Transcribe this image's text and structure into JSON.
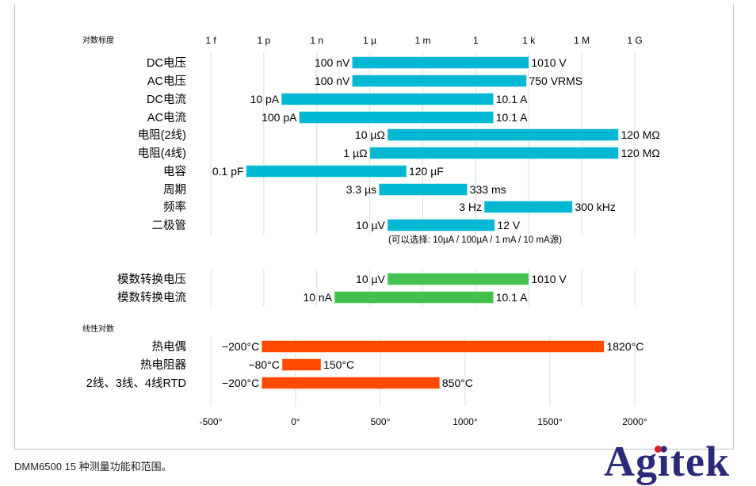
{
  "chart_data": [
    {
      "type": "bar",
      "orientation": "horizontal",
      "scale": "log",
      "scale_label": "对数标度",
      "ticks": [
        {
          "value": 1e-15,
          "label": "1 f"
        },
        {
          "value": 1e-12,
          "label": "1 p"
        },
        {
          "value": 1e-09,
          "label": "1 n"
        },
        {
          "value": 1e-06,
          "label": "1 µ"
        },
        {
          "value": 0.001,
          "label": "1 m"
        },
        {
          "value": 1,
          "label": "1"
        },
        {
          "value": 1000.0,
          "label": "1 k"
        },
        {
          "value": 1000000.0,
          "label": "1 M"
        },
        {
          "value": 1000000000.0,
          "label": "1 G"
        }
      ],
      "xlim": [
        1e-15,
        1000000000.0
      ],
      "grid": true,
      "note": "(可以选择: 10µA / 100µA / 1 mA / 10 mA源)",
      "series": [
        {
          "color": "#00b8d4",
          "rows": [
            {
              "category": "DC电压",
              "min": 1e-07,
              "max": 1010,
              "min_label": "100 nV",
              "max_label": "1010 V"
            },
            {
              "category": "AC电压",
              "min": 1e-07,
              "max": 750,
              "min_label": "100 nV",
              "max_label": "750 VRMS"
            },
            {
              "category": "DC电流",
              "min": 1e-11,
              "max": 10.1,
              "min_label": "10 pA",
              "max_label": "10.1 A"
            },
            {
              "category": "AC电流",
              "min": 1e-10,
              "max": 10.1,
              "min_label": "100 pA",
              "max_label": "10.1 A"
            },
            {
              "category": "电阻(2线)",
              "min": 1e-05,
              "max": 120000000.0,
              "min_label": "10 µΩ",
              "max_label": "120 MΩ"
            },
            {
              "category": "电阻(4线)",
              "min": 1e-06,
              "max": 120000000.0,
              "min_label": "1 µΩ",
              "max_label": "120 MΩ"
            },
            {
              "category": "电容",
              "min": 1e-13,
              "max": 0.00012,
              "min_label": "0.1 pF",
              "max_label": "120 µF"
            },
            {
              "category": "周期",
              "min": 3.3e-06,
              "max": 0.333,
              "min_label": "3.3 µs",
              "max_label": "333 ms"
            },
            {
              "category": "频率",
              "min": 3,
              "max": 300000.0,
              "min_label": "3 Hz",
              "max_label": "300 kHz"
            },
            {
              "category": "二极管",
              "min": 1e-05,
              "max": 12,
              "min_label": "10 µV",
              "max_label": "12 V"
            }
          ]
        },
        {
          "color": "#44c04c",
          "rows": [
            {
              "category": "模数转换电压",
              "min": 1e-05,
              "max": 1010,
              "min_label": "10 µV",
              "max_label": "1010 V"
            },
            {
              "category": "模数转换电流",
              "min": 1e-08,
              "max": 10.1,
              "min_label": "10 nA",
              "max_label": "10.1 A"
            }
          ]
        }
      ]
    },
    {
      "type": "bar",
      "orientation": "horizontal",
      "scale": "linear",
      "scale_label": "线性对数",
      "ticks": [
        {
          "value": -500,
          "label": "-500°"
        },
        {
          "value": 0,
          "label": "0°"
        },
        {
          "value": 500,
          "label": "500°"
        },
        {
          "value": 1000,
          "label": "1000°"
        },
        {
          "value": 1500,
          "label": "1500°"
        },
        {
          "value": 2000,
          "label": "2000°"
        }
      ],
      "xlim": [
        -500,
        2000
      ],
      "grid": true,
      "series": [
        {
          "color": "#ff4a00",
          "rows": [
            {
              "category": "热电偶",
              "min": -200,
              "max": 1820,
              "min_label": "−200°C",
              "max_label": "1820°C"
            },
            {
              "category": "热电阻器",
              "min": -80,
              "max": 150,
              "min_label": "−80°C",
              "max_label": "150°C"
            },
            {
              "category": "2线、3线、4线RTD",
              "min": -200,
              "max": 850,
              "min_label": "−200°C",
              "max_label": "850°C"
            }
          ]
        }
      ]
    }
  ],
  "caption": "DMM6500 15 种测量功能和范围。",
  "logo": "Agitek"
}
